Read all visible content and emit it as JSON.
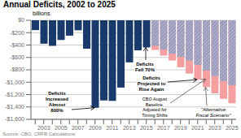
{
  "chart_data": {
    "type": "bar",
    "title": "Annual Deficits, 2002 to 2025",
    "ylabel": "billions",
    "source": "Source: CBO, CRFB Calculations",
    "categories": [
      null,
      "2003",
      null,
      "2005",
      null,
      "2007",
      null,
      "2009",
      null,
      "2011",
      null,
      "2013",
      null,
      "2015",
      null,
      "2017",
      null,
      "2019",
      null,
      "2021",
      null,
      "2023",
      null,
      "2025"
    ],
    "series": [
      {
        "color": "#1a3a6b",
        "values": [
          -158,
          -378,
          -413,
          -318,
          -248,
          -161,
          -459,
          -1413,
          -1294,
          -1300,
          -1087,
          -680,
          -485,
          -439,
          null,
          null,
          null,
          null,
          null,
          null,
          null,
          null,
          null,
          null
        ]
      },
      {
        "color": "#9999bb",
        "values": [
          null,
          null,
          null,
          null,
          null,
          null,
          null,
          null,
          null,
          null,
          null,
          null,
          null,
          null,
          -414,
          -470,
          -540,
          -590,
          -650,
          -720,
          -810,
          -900,
          -980,
          -1050
        ]
      },
      {
        "color": "#f4a0a0",
        "values": [
          null,
          null,
          null,
          null,
          null,
          null,
          null,
          null,
          null,
          null,
          null,
          null,
          null,
          null,
          -480,
          -570,
          -650,
          -760,
          -860,
          -960,
          -1080,
          -1180,
          -1270,
          -1340
        ]
      }
    ],
    "ylim": [
      -1600,
      0
    ],
    "yticks": [
      {
        "value": -1600,
        "label": "-$1,600"
      },
      {
        "value": -1400,
        "label": "-$1,400"
      },
      {
        "value": -1200,
        "label": "-$1,200"
      },
      {
        "value": -1000,
        "label": "-$1,000"
      },
      {
        "value": -800,
        "label": "-$800"
      },
      {
        "value": -600,
        "label": "-$600"
      },
      {
        "value": -400,
        "label": "-$400"
      },
      {
        "value": -200,
        "label": "-$200"
      },
      {
        "value": 0,
        "label": "$0"
      }
    ],
    "grid": true,
    "annotations": [
      {
        "text": "Deficits\nIncreased\nAlmost\n800%",
        "x": 2009,
        "y": -1413
      },
      {
        "text": "Deficits\nFell 70%",
        "x": 2015,
        "y": -439
      },
      {
        "text": "Deficits\nProjected to\nRise Again",
        "x": 2021,
        "y": -960
      },
      {
        "text": "\"Alternative\nFiscal Scenario\"",
        "x": 2022,
        "y": -1080
      },
      {
        "text": "CBO August\nBaseline,\nAdjusted for\nTiming Shifts",
        "x": 2022,
        "y": -950
      }
    ]
  }
}
